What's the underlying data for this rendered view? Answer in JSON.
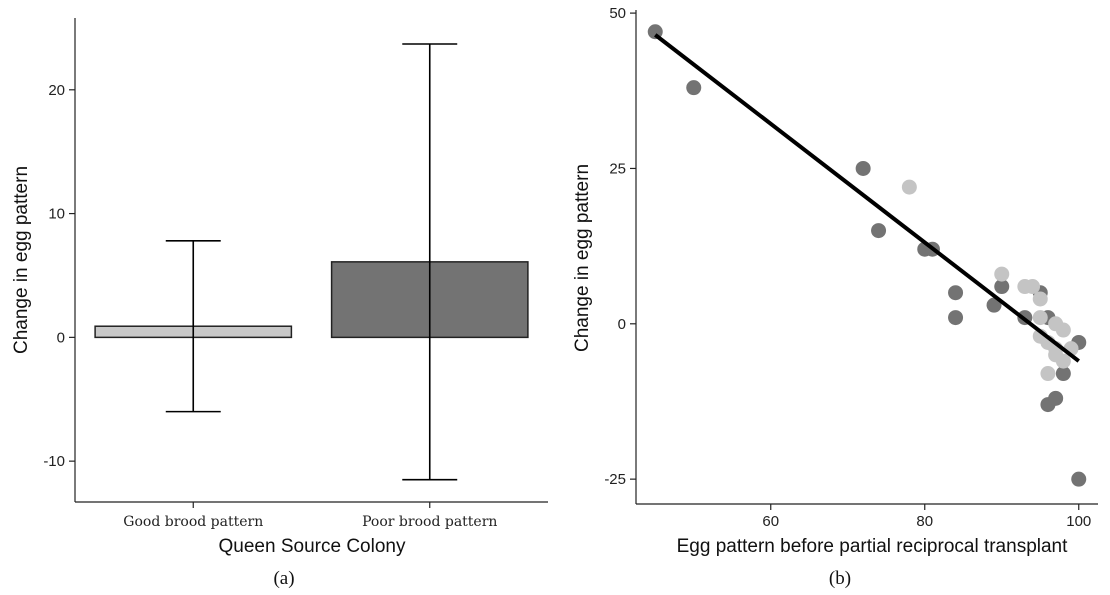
{
  "chart_data": [
    {
      "type": "bar",
      "panel_label": "(a)",
      "categories": [
        "Good brood pattern",
        "Poor brood pattern"
      ],
      "values": [
        0.9,
        6.1
      ],
      "error_low": [
        -6.0,
        -11.5
      ],
      "error_high": [
        7.8,
        23.7
      ],
      "bar_colors": [
        "#c8c8c8",
        "#737373"
      ],
      "xlabel": "Queen Source Colony",
      "ylabel": "Change in egg pattern",
      "ylim": [
        -13.3,
        25.8
      ],
      "yticks": [
        -10,
        0,
        10,
        20
      ],
      "grid": false
    },
    {
      "type": "scatter",
      "panel_label": "(b)",
      "xlabel": "Egg pattern before partial reciprocal transplant",
      "ylabel": "Change in egg pattern",
      "xlim": [
        42.5,
        102.5
      ],
      "ylim": [
        -29,
        50.5
      ],
      "xticks": [
        60,
        80,
        100
      ],
      "yticks": [
        -25,
        0,
        25,
        50
      ],
      "grid": false,
      "series": [
        {
          "color": "#737373",
          "points": [
            [
              45,
              47
            ],
            [
              50,
              38
            ],
            [
              72,
              25
            ],
            [
              74,
              15
            ],
            [
              80,
              12
            ],
            [
              81,
              12
            ],
            [
              84,
              5
            ],
            [
              84,
              1
            ],
            [
              89,
              3
            ],
            [
              90,
              6
            ],
            [
              93,
              1
            ],
            [
              95,
              5
            ],
            [
              96,
              1
            ],
            [
              96,
              -13
            ],
            [
              97,
              -12
            ],
            [
              98,
              -8
            ],
            [
              100,
              -3
            ],
            [
              100,
              -25
            ]
          ]
        },
        {
          "color": "#c4c4c4",
          "points": [
            [
              78,
              22
            ],
            [
              90,
              8
            ],
            [
              93,
              6
            ],
            [
              94,
              6
            ],
            [
              95,
              4
            ],
            [
              95,
              1
            ],
            [
              95,
              -2
            ],
            [
              96,
              -3
            ],
            [
              96,
              -8
            ],
            [
              97,
              0
            ],
            [
              97,
              -4
            ],
            [
              97,
              -5
            ],
            [
              98,
              -1
            ],
            [
              98,
              -6
            ],
            [
              99,
              -4
            ]
          ]
        }
      ],
      "fit_line": {
        "x": [
          45,
          100
        ],
        "y": [
          46.5,
          -6
        ],
        "color": "#000000"
      }
    }
  ]
}
